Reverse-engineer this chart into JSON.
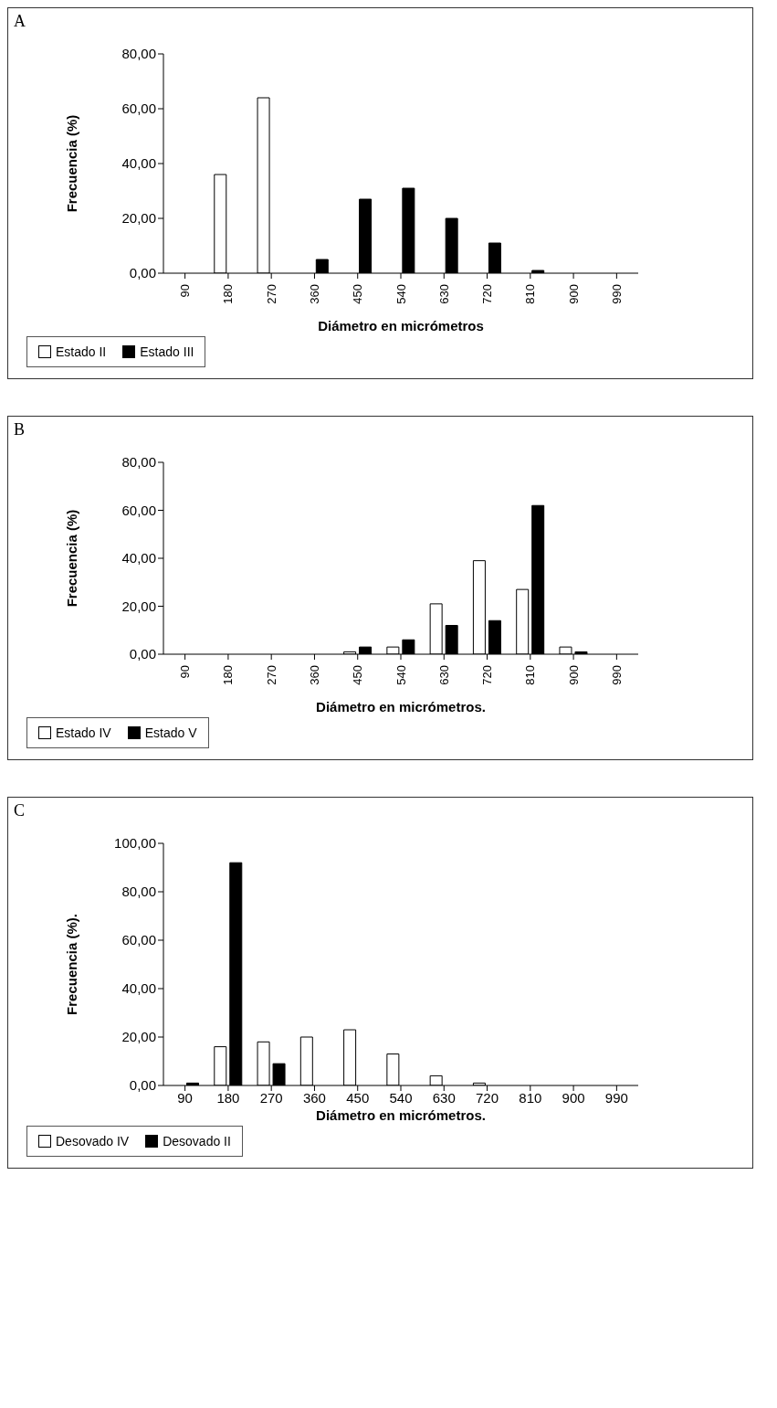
{
  "chart_data": [
    {
      "type": "bar",
      "title": "A",
      "xlabel": "Diámetro en micrómetros",
      "ylabel": "Frecuencia (%)",
      "categories": [
        "90",
        "180",
        "270",
        "360",
        "450",
        "540",
        "630",
        "720",
        "810",
        "900",
        "990"
      ],
      "series": [
        {
          "name": "Estado II",
          "color": "#ffffff",
          "values": [
            0,
            36,
            64,
            0,
            0,
            0,
            0,
            0,
            0,
            0,
            0
          ]
        },
        {
          "name": "Estado III",
          "color": "#000000",
          "values": [
            0,
            0,
            0,
            5,
            27,
            31,
            20,
            11,
            1,
            0,
            0
          ]
        }
      ],
      "ylim": [
        0,
        80
      ],
      "yticks": [
        {
          "value": 0,
          "label": "0,00"
        },
        {
          "value": 20,
          "label": "20,00"
        },
        {
          "value": 40,
          "label": "40,00"
        },
        {
          "value": 60,
          "label": "60,00"
        },
        {
          "value": 80,
          "label": "80,00"
        }
      ],
      "grid": false,
      "legend": "bottom left"
    },
    {
      "type": "bar",
      "title": "B",
      "xlabel": "Diámetro en micrómetros.",
      "ylabel": "Frecuencia (%)",
      "categories": [
        "90",
        "180",
        "270",
        "360",
        "450",
        "540",
        "630",
        "720",
        "810",
        "900",
        "990"
      ],
      "series": [
        {
          "name": "Estado IV",
          "color": "#ffffff",
          "values": [
            0,
            0,
            0,
            0,
            1,
            3,
            21,
            39,
            27,
            3,
            0
          ]
        },
        {
          "name": "Estado V",
          "color": "#000000",
          "values": [
            0,
            0,
            0,
            0,
            3,
            6,
            12,
            14,
            62,
            1,
            0
          ]
        }
      ],
      "ylim": [
        0,
        80
      ],
      "yticks": [
        {
          "value": 0,
          "label": "0,00"
        },
        {
          "value": 20,
          "label": "20,00"
        },
        {
          "value": 40,
          "label": "40,00"
        },
        {
          "value": 60,
          "label": "60,00"
        },
        {
          "value": 80,
          "label": "80,00"
        }
      ],
      "grid": false,
      "legend": "bottom left"
    },
    {
      "type": "bar",
      "title": "C",
      "xlabel": "Diámetro en micrómetros.",
      "ylabel": "Frecuencia (%).",
      "categories": [
        "90",
        "180",
        "270",
        "360",
        "450",
        "540",
        "630",
        "720",
        "810",
        "900",
        "990"
      ],
      "series": [
        {
          "name": "Desovado IV",
          "color": "#ffffff",
          "values": [
            0,
            16,
            18,
            20,
            23,
            13,
            4,
            1,
            0,
            0,
            0
          ]
        },
        {
          "name": "Desovado II",
          "color": "#000000",
          "values": [
            1,
            92,
            9,
            0,
            0,
            0,
            0,
            0,
            0,
            0,
            0
          ]
        }
      ],
      "ylim": [
        0,
        100
      ],
      "yticks": [
        {
          "value": 0,
          "label": "0,00"
        },
        {
          "value": 20,
          "label": "20,00"
        },
        {
          "value": 40,
          "label": "40,00"
        },
        {
          "value": 60,
          "label": "60,00"
        },
        {
          "value": 80,
          "label": "80,00"
        },
        {
          "value": 100,
          "label": "100,00"
        }
      ],
      "grid": false,
      "legend": "bottom left"
    }
  ]
}
